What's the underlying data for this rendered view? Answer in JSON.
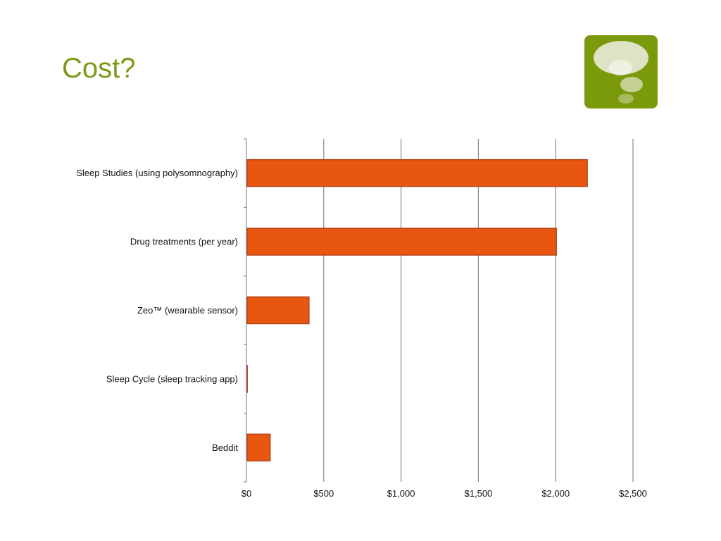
{
  "slide": {
    "title": "Cost?"
  },
  "logo": {
    "icon": "thought-bubble-icon",
    "background_color": "#7a9a0c"
  },
  "chart_data": {
    "type": "bar",
    "orientation": "horizontal",
    "title": "",
    "xlabel": "",
    "ylabel": "",
    "categories": [
      "Sleep Studies (using polysomnography)",
      "Drug treatments (per year)",
      "Zeo™ (wearable sensor)",
      "Sleep Cycle (sleep tracking app)",
      "Beddit"
    ],
    "values": [
      2200,
      2000,
      400,
      1,
      149
    ],
    "xlim": [
      0,
      2500
    ],
    "ticks": [
      0,
      500,
      1000,
      1500,
      2000,
      2500
    ],
    "tick_labels": [
      "$0",
      "$500",
      "$1,000",
      "$1,500",
      "$2,000",
      "$2,500"
    ],
    "grid": true,
    "legend": "none",
    "bar_color": "#e8560f",
    "bar_edge_color": "#b5441a"
  }
}
